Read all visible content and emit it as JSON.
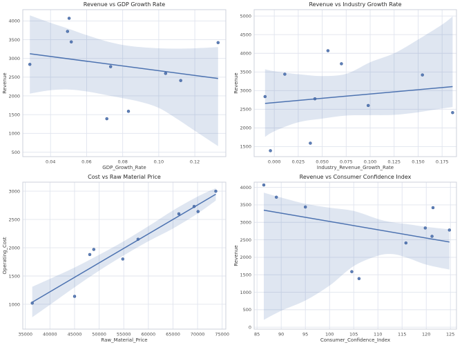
{
  "figure": {
    "background": "#ffffff",
    "grid_rows": 2,
    "grid_cols": 2
  },
  "style": {
    "accent": "#4c72b0",
    "point_fill": "#4c72b0",
    "point_edge": "#3b5a94",
    "band_fill": "rgba(76,114,176,0.18)",
    "grid_color": "#e0e4ee",
    "spine_color": "#ccd1db",
    "title_color": "#262626",
    "label_color": "#3c3c3c",
    "tick_color": "#4d4d4d"
  },
  "chart_data": [
    {
      "type": "scatter",
      "title": "Revenue vs GDP Growth Rate",
      "xlabel": "GDP_Growth_Rate",
      "ylabel": "Revenue",
      "xlim": [
        0.0246,
        0.1372
      ],
      "ylim": [
        380,
        4300
      ],
      "grid": true,
      "legend": null,
      "regression": true,
      "xticks": {
        "values": [
          0.04,
          0.06,
          0.08,
          0.1,
          0.12
        ],
        "labels": [
          "0.04",
          "0.06",
          "0.08",
          "0.10",
          "0.12"
        ]
      },
      "yticks": {
        "values": [
          500,
          1000,
          1500,
          2000,
          2500,
          3000,
          3500,
          4000
        ],
        "labels": [
          "500",
          "1000",
          "1500",
          "2000",
          "2500",
          "3000",
          "3500",
          "4000"
        ]
      },
      "points": {
        "x": [
          0.0285,
          0.0494,
          0.0503,
          0.0515,
          0.0712,
          0.0733,
          0.0832,
          0.1038,
          0.1122,
          0.1329
        ],
        "y": [
          2840,
          3720,
          4070,
          3440,
          1390,
          2780,
          1590,
          2600,
          2410,
          3420
        ]
      },
      "ci_band": {
        "x": [
          0.0285,
          0.04,
          0.05,
          0.06,
          0.07,
          0.08,
          0.09,
          0.1,
          0.11,
          0.12,
          0.1329
        ],
        "upper": [
          4150,
          3950,
          3790,
          3620,
          3470,
          3360,
          3300,
          3270,
          3260,
          3270,
          3300
        ],
        "lower": [
          2060,
          2150,
          2170,
          2120,
          2030,
          1940,
          1840,
          1680,
          1390,
          1070,
          660
        ]
      }
    },
    {
      "type": "scatter",
      "title": "Revenue vs Industry Growth Rate",
      "xlabel": "Industry_Revenue_Growth_Rate",
      "ylabel": "Revenue",
      "xlim": [
        -0.021,
        0.19
      ],
      "ylim": [
        1230,
        5170
      ],
      "grid": true,
      "legend": null,
      "regression": true,
      "xticks": {
        "values": [
          0.0,
          0.025,
          0.05,
          0.075,
          0.1,
          0.125,
          0.15,
          0.175
        ],
        "labels": [
          "0.000",
          "0.025",
          "0.050",
          "0.075",
          "0.100",
          "0.125",
          "0.150",
          "0.175"
        ]
      },
      "yticks": {
        "values": [
          1500,
          2000,
          2500,
          3000,
          3500,
          4000,
          4500,
          5000
        ],
        "labels": [
          "1500",
          "2000",
          "2500",
          "3000",
          "3500",
          "4000",
          "4500",
          "5000"
        ]
      },
      "points": {
        "x": [
          -0.0096,
          -0.004,
          0.011,
          0.0376,
          0.0424,
          0.056,
          0.07,
          0.098,
          0.1545,
          0.186
        ],
        "y": [
          2840,
          1390,
          3440,
          1590,
          2780,
          4070,
          3720,
          2600,
          3420,
          2410
        ]
      },
      "ci_band": {
        "x": [
          -0.0096,
          0.0,
          0.025,
          0.05,
          0.075,
          0.1,
          0.125,
          0.15,
          0.175,
          0.186
        ],
        "upper": [
          3570,
          3520,
          3440,
          3390,
          3450,
          3760,
          4000,
          4370,
          4770,
          4990
        ],
        "lower": [
          1760,
          1910,
          2150,
          2250,
          2330,
          2340,
          2350,
          2420,
          2520,
          2560
        ]
      }
    },
    {
      "type": "scatter",
      "title": "Cost vs Raw Material Price",
      "xlabel": "Raw_Material_Price",
      "ylabel": "Operating_Cost",
      "xlim": [
        34480,
        75740
      ],
      "ylim": [
        560,
        3160
      ],
      "grid": true,
      "legend": null,
      "regression": true,
      "xticks": {
        "values": [
          35000,
          40000,
          45000,
          50000,
          55000,
          60000,
          65000,
          70000,
          75000
        ],
        "labels": [
          "35000",
          "40000",
          "45000",
          "50000",
          "55000",
          "60000",
          "65000",
          "70000",
          "75000"
        ]
      },
      "yticks": {
        "values": [
          1000,
          1500,
          2000,
          2500,
          3000
        ],
        "labels": [
          "1000",
          "1500",
          "2000",
          "2500",
          "3000"
        ]
      },
      "points": {
        "x": [
          36400,
          45000,
          48100,
          48900,
          54800,
          57900,
          66200,
          69300,
          70100,
          73700
        ],
        "y": [
          1020,
          1140,
          1880,
          1970,
          1800,
          2150,
          2600,
          2730,
          2640,
          3000
        ]
      },
      "ci_band": {
        "x": [
          36400,
          40000,
          45000,
          50000,
          55000,
          60000,
          65000,
          70000,
          73700
        ],
        "upper": [
          1310,
          1450,
          1650,
          1875,
          2115,
          2380,
          2660,
          2905,
          3055
        ],
        "lower": [
          770,
          990,
          1300,
          1595,
          1865,
          2115,
          2340,
          2605,
          2835
        ]
      }
    },
    {
      "type": "scatter",
      "title": "Revenue vs Consumer Confidence Index",
      "xlabel": "Consumer_Confidence_Index",
      "ylabel": "Revenue",
      "xlim": [
        84.4,
        126.25
      ],
      "ylim": [
        -55,
        4150
      ],
      "grid": true,
      "legend": null,
      "regression": true,
      "xticks": {
        "values": [
          85,
          90,
          95,
          100,
          105,
          110,
          115,
          120,
          125
        ],
        "labels": [
          "85",
          "90",
          "95",
          "100",
          "105",
          "110",
          "115",
          "120",
          "125"
        ]
      },
      "yticks": {
        "values": [
          0,
          500,
          1000,
          1500,
          2000,
          2500,
          3000,
          3500,
          4000
        ],
        "labels": [
          "0",
          "500",
          "1000",
          "1500",
          "2000",
          "2500",
          "3000",
          "3500",
          "4000"
        ]
      },
      "points": {
        "x": [
          86.4,
          89.0,
          95.0,
          104.6,
          106.1,
          115.8,
          119.8,
          121.2,
          121.4,
          124.8
        ],
        "y": [
          4070,
          3720,
          3440,
          1590,
          1390,
          2410,
          2840,
          2600,
          3420,
          2780
        ]
      },
      "ci_band": {
        "x": [
          86.4,
          90,
          95,
          100,
          105,
          110,
          113,
          116,
          120,
          124.8
        ],
        "upper": [
          3850,
          3710,
          3530,
          3420,
          3325,
          3095,
          3000,
          2950,
          2870,
          2800
        ],
        "lower": [
          210,
          470,
          765,
          1190,
          1750,
          2045,
          2090,
          1990,
          1790,
          1650
        ]
      }
    }
  ]
}
